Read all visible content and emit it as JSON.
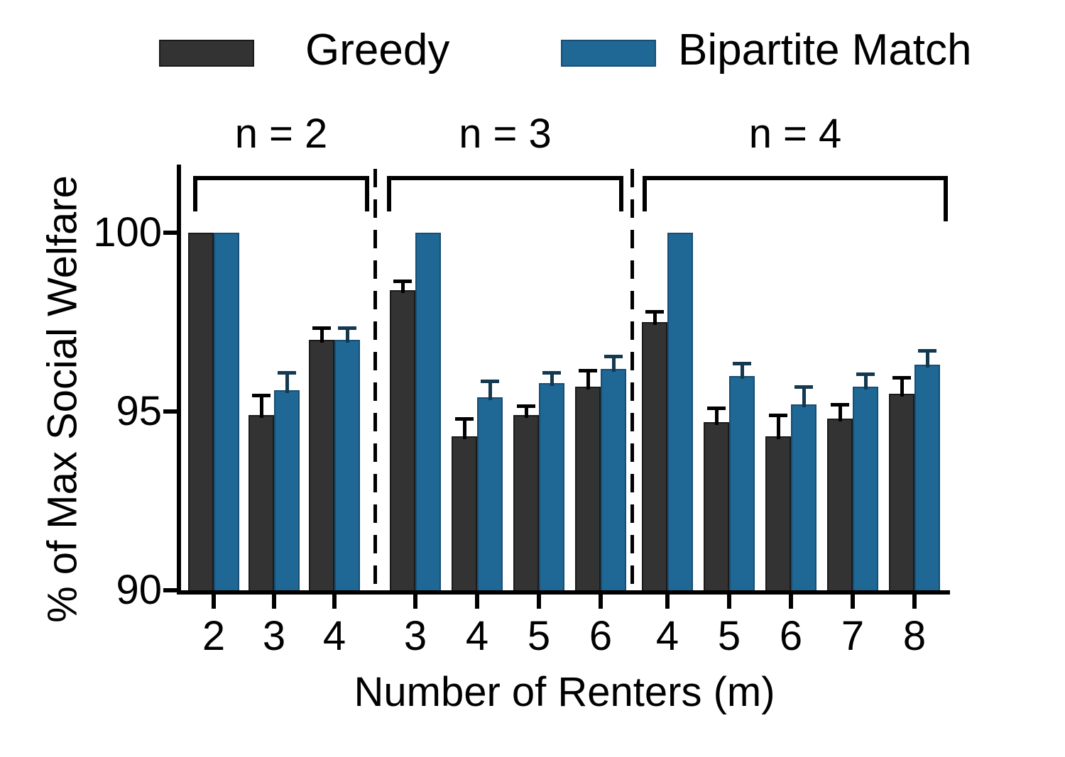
{
  "chart_data": {
    "type": "bar",
    "title": "",
    "ylabel": "% of Max Social Welfare",
    "xlabel": "Number of Renters (m)",
    "y_ticks": [
      100,
      95,
      90
    ],
    "ylim": [
      90,
      101
    ],
    "grid": false,
    "legend_position": "top",
    "axis_color": "#000000",
    "legend": [
      {
        "name": "Greedy",
        "color": "#333333",
        "edge_color": "#1a1a1a",
        "error_color": "#000000"
      },
      {
        "name": "Bipartite Match",
        "color": "#1f6795",
        "edge_color": "#174e73",
        "error_color": "#14384f"
      }
    ],
    "groups": [
      {
        "label": "n = 2",
        "categories": [
          "2",
          "3",
          "4"
        ],
        "series": [
          {
            "name": "Greedy",
            "values": [
              100,
              94.9,
              97.0
            ],
            "errors": [
              0,
              0.55,
              0.35
            ]
          },
          {
            "name": "Bipartite Match",
            "values": [
              100,
              95.6,
              97.0
            ],
            "errors": [
              0,
              0.5,
              0.35
            ]
          }
        ]
      },
      {
        "label": "n = 3",
        "categories": [
          "3",
          "4",
          "5",
          "6"
        ],
        "series": [
          {
            "name": "Greedy",
            "values": [
              98.4,
              94.3,
              94.9,
              95.7
            ],
            "errors": [
              0.25,
              0.5,
              0.25,
              0.45
            ]
          },
          {
            "name": "Bipartite Match",
            "values": [
              100,
              95.4,
              95.8,
              96.2
            ],
            "errors": [
              0,
              0.45,
              0.3,
              0.35
            ]
          }
        ]
      },
      {
        "label": "n = 4",
        "categories": [
          "4",
          "5",
          "6",
          "7",
          "8"
        ],
        "series": [
          {
            "name": "Greedy",
            "values": [
              97.5,
              94.7,
              94.3,
              94.8,
              95.5
            ],
            "errors": [
              0.3,
              0.4,
              0.6,
              0.4,
              0.45
            ]
          },
          {
            "name": "Bipartite Match",
            "values": [
              100,
              96.0,
              95.2,
              95.7,
              96.3
            ],
            "errors": [
              0,
              0.35,
              0.5,
              0.35,
              0.4
            ]
          }
        ]
      }
    ]
  }
}
